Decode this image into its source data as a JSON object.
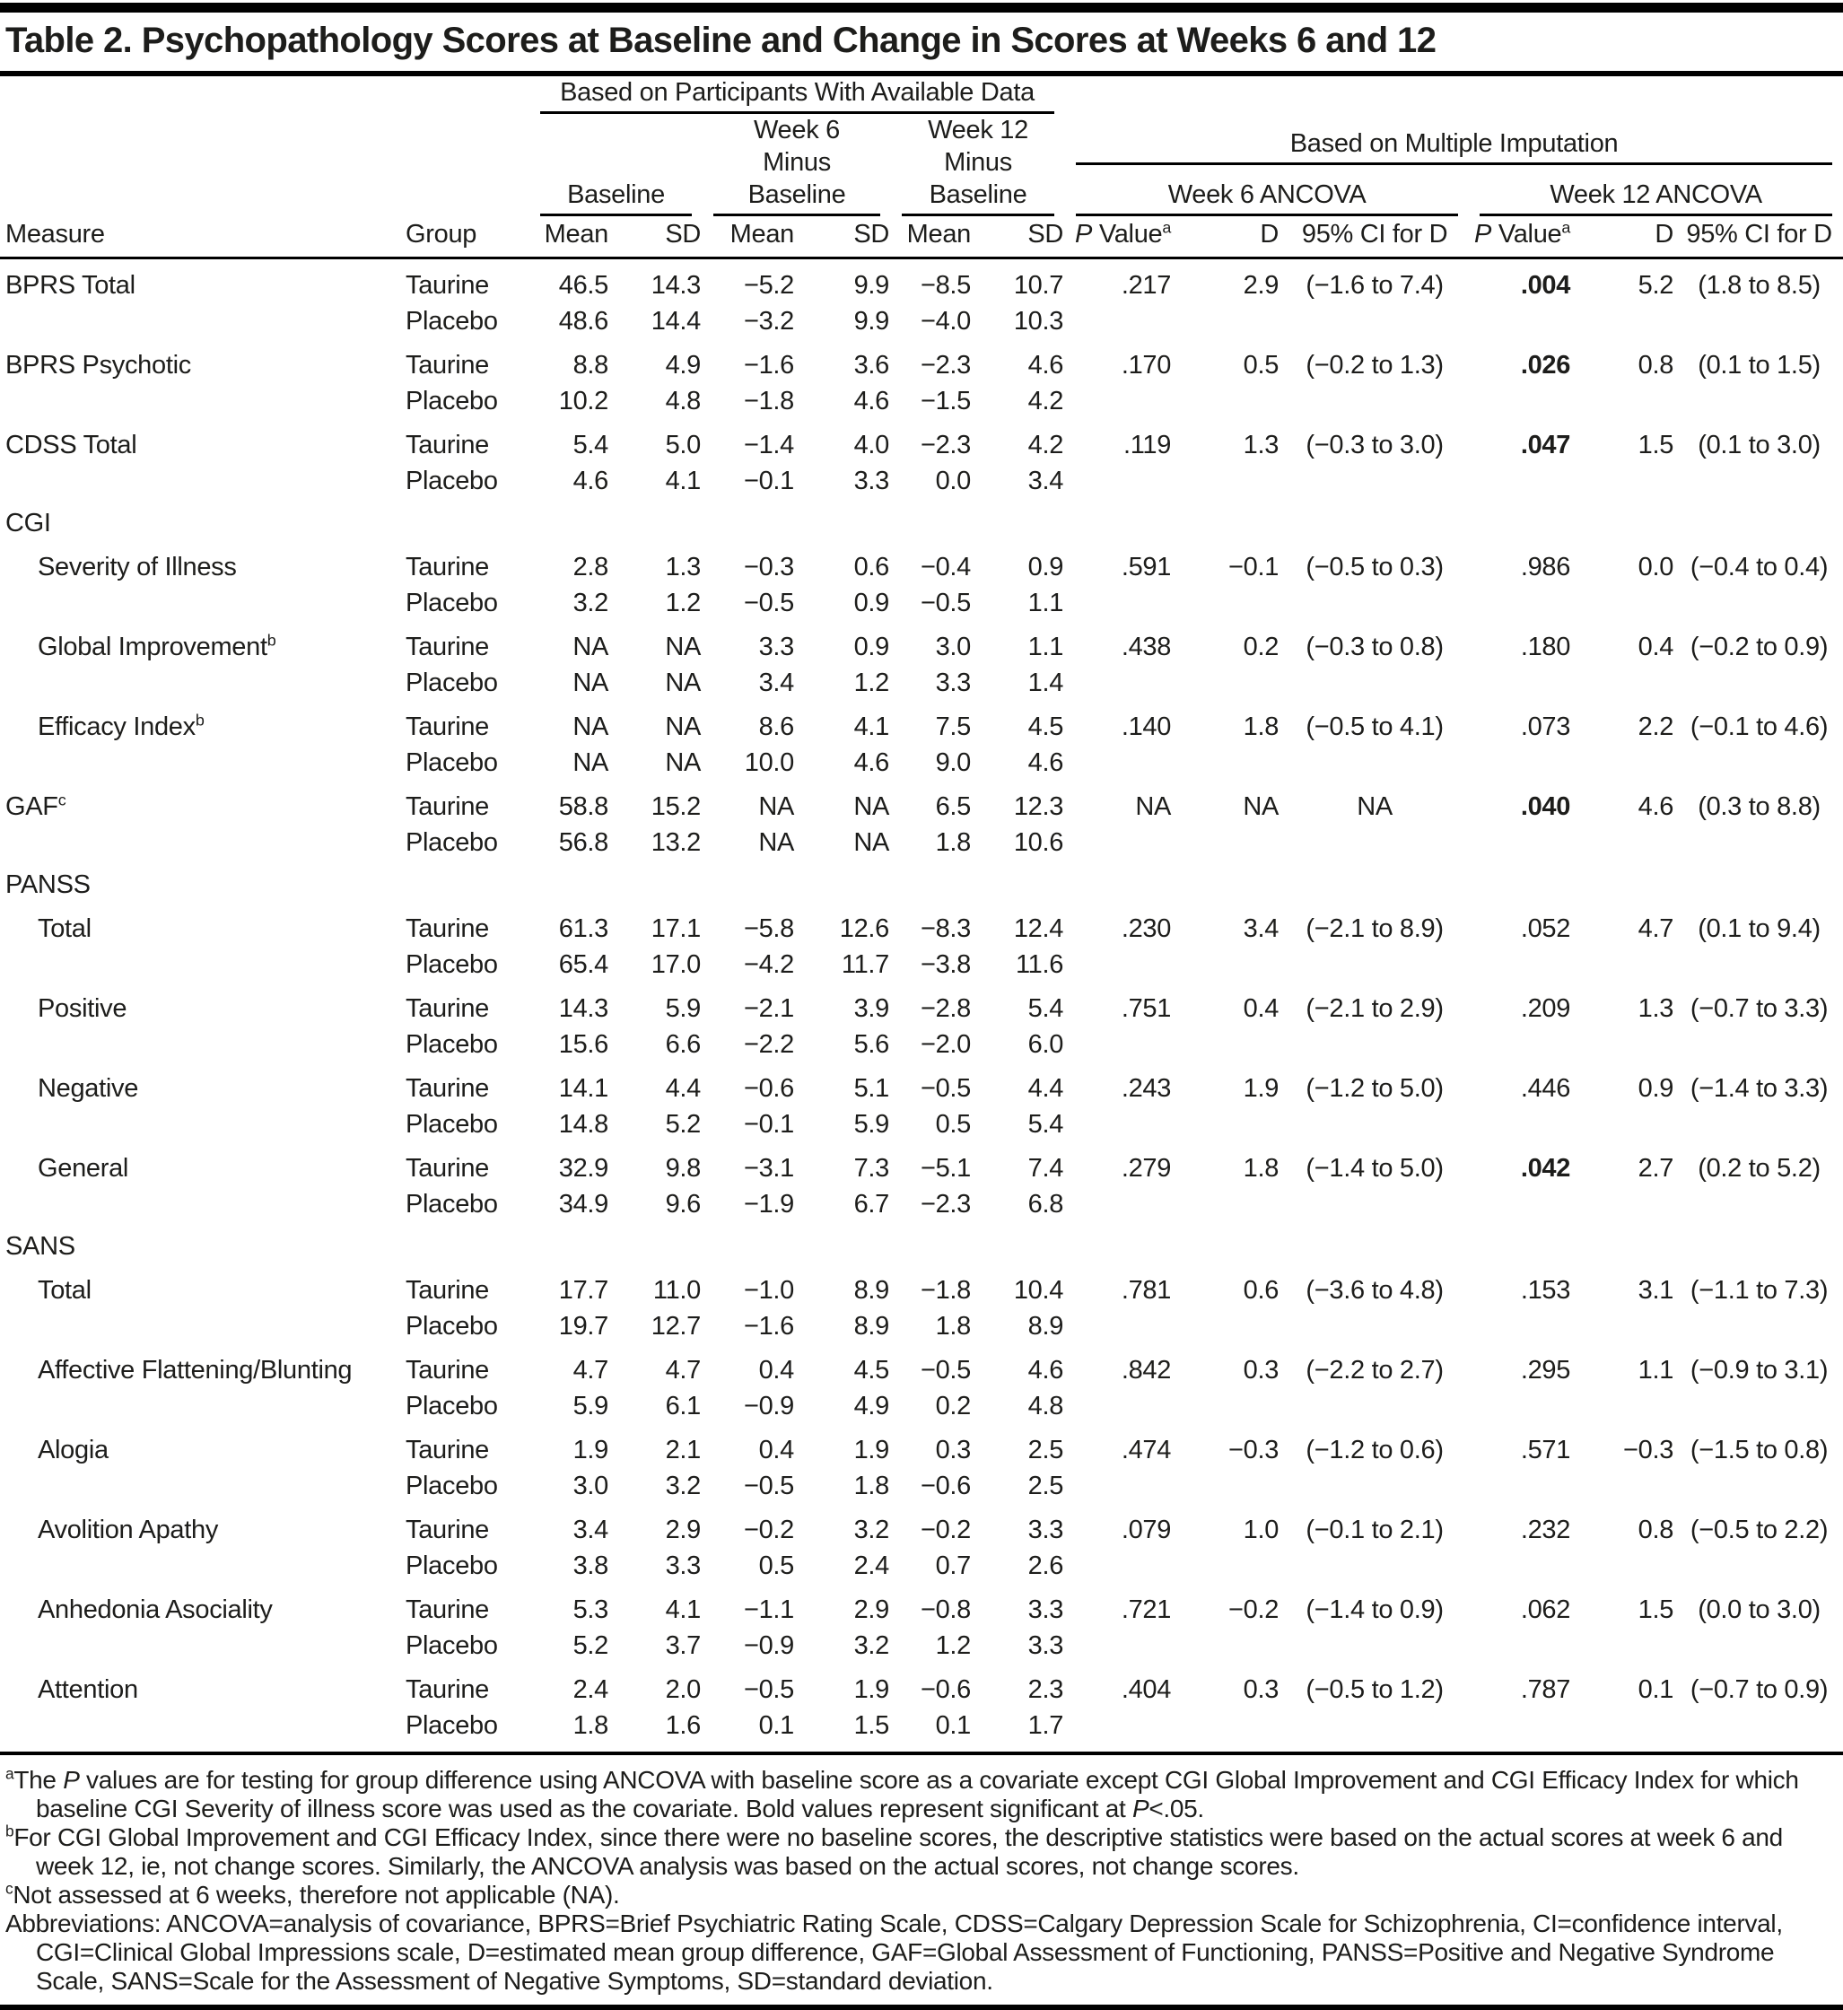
{
  "colors": {
    "ink": "#1d1d1b",
    "rule": "#000000",
    "background": "#ffffff"
  },
  "title": "Table 2. Psychopathology Scores at Baseline and Change in Scores at Weeks 6 and 12",
  "header": {
    "available_data": "Based on Participants With Available Data",
    "multiple_imputation": "Based on Multiple Imputation",
    "baseline": "Baseline",
    "week6_minus_lines": [
      "Week 6",
      "Minus",
      "Baseline"
    ],
    "week12_minus_lines": [
      "Week 12",
      "Minus",
      "Baseline"
    ],
    "week6_ancova": "Week 6 ANCOVA",
    "week12_ancova": "Week 12 ANCOVA",
    "measure": "Measure",
    "group": "Group",
    "mean": "Mean",
    "sd": "SD",
    "p_italic": "P",
    "p_value_rest": " Value",
    "p_sup": "a",
    "d": "D",
    "ci_for_d": "95% CI for D"
  },
  "rows": [
    {
      "label": "BPRS Total",
      "indent": false,
      "groups": [
        {
          "group": "Taurine",
          "vals": [
            "46.5",
            "14.3",
            "−5.2",
            "9.9",
            "−8.5",
            "10.7"
          ],
          "w6": {
            "p": ".217",
            "d": "2.9",
            "ci": "(−1.6 to 7.4)"
          },
          "w12": {
            "p": ".004",
            "bold": true,
            "d": "5.2",
            "ci": "(1.8 to 8.5)"
          }
        },
        {
          "group": "Placebo",
          "vals": [
            "48.6",
            "14.4",
            "−3.2",
            "9.9",
            "−4.0",
            "10.3"
          ]
        }
      ]
    },
    {
      "label": "BPRS Psychotic",
      "indent": false,
      "groups": [
        {
          "group": "Taurine",
          "vals": [
            "8.8",
            "4.9",
            "−1.6",
            "3.6",
            "−2.3",
            "4.6"
          ],
          "w6": {
            "p": ".170",
            "d": "0.5",
            "ci": "(−0.2 to 1.3)"
          },
          "w12": {
            "p": ".026",
            "bold": true,
            "d": "0.8",
            "ci": "(0.1 to 1.5)"
          }
        },
        {
          "group": "Placebo",
          "vals": [
            "10.2",
            "4.8",
            "−1.8",
            "4.6",
            "−1.5",
            "4.2"
          ]
        }
      ]
    },
    {
      "label": "CDSS Total",
      "indent": false,
      "groups": [
        {
          "group": "Taurine",
          "vals": [
            "5.4",
            "5.0",
            "−1.4",
            "4.0",
            "−2.3",
            "4.2"
          ],
          "w6": {
            "p": ".119",
            "d": "1.3",
            "ci": "(−0.3 to 3.0)"
          },
          "w12": {
            "p": ".047",
            "bold": true,
            "d": "1.5",
            "ci": "(0.1 to 3.0)"
          }
        },
        {
          "group": "Placebo",
          "vals": [
            "4.6",
            "4.1",
            "−0.1",
            "3.3",
            "0.0",
            "3.4"
          ]
        }
      ]
    },
    {
      "section": "CGI"
    },
    {
      "label": "Severity of Illness",
      "indent": true,
      "groups": [
        {
          "group": "Taurine",
          "vals": [
            "2.8",
            "1.3",
            "−0.3",
            "0.6",
            "−0.4",
            "0.9"
          ],
          "w6": {
            "p": ".591",
            "d": "−0.1",
            "ci": "(−0.5 to 0.3)"
          },
          "w12": {
            "p": ".986",
            "bold": false,
            "d": "0.0",
            "ci": "(−0.4 to 0.4)"
          }
        },
        {
          "group": "Placebo",
          "vals": [
            "3.2",
            "1.2",
            "−0.5",
            "0.9",
            "−0.5",
            "1.1"
          ]
        }
      ]
    },
    {
      "label": "Global Improvement",
      "label_sup": "b",
      "indent": true,
      "groups": [
        {
          "group": "Taurine",
          "vals": [
            "NA",
            "NA",
            "3.3",
            "0.9",
            "3.0",
            "1.1"
          ],
          "w6": {
            "p": ".438",
            "d": "0.2",
            "ci": "(−0.3 to 0.8)"
          },
          "w12": {
            "p": ".180",
            "bold": false,
            "d": "0.4",
            "ci": "(−0.2 to 0.9)"
          }
        },
        {
          "group": "Placebo",
          "vals": [
            "NA",
            "NA",
            "3.4",
            "1.2",
            "3.3",
            "1.4"
          ]
        }
      ]
    },
    {
      "label": "Efficacy Index",
      "label_sup": "b",
      "indent": true,
      "groups": [
        {
          "group": "Taurine",
          "vals": [
            "NA",
            "NA",
            "8.6",
            "4.1",
            "7.5",
            "4.5"
          ],
          "w6": {
            "p": ".140",
            "d": "1.8",
            "ci": "(−0.5 to 4.1)"
          },
          "w12": {
            "p": ".073",
            "bold": false,
            "d": "2.2",
            "ci": "(−0.1 to 4.6)"
          }
        },
        {
          "group": "Placebo",
          "vals": [
            "NA",
            "NA",
            "10.0",
            "4.6",
            "9.0",
            "4.6"
          ]
        }
      ]
    },
    {
      "label": "GAF",
      "label_sup": "c",
      "indent": false,
      "groups": [
        {
          "group": "Taurine",
          "vals": [
            "58.8",
            "15.2",
            "NA",
            "NA",
            "6.5",
            "12.3"
          ],
          "w6": {
            "p": "NA",
            "d": "NA",
            "ci": "NA"
          },
          "w12": {
            "p": ".040",
            "bold": true,
            "d": "4.6",
            "ci": "(0.3 to 8.8)"
          }
        },
        {
          "group": "Placebo",
          "vals": [
            "56.8",
            "13.2",
            "NA",
            "NA",
            "1.8",
            "10.6"
          ]
        }
      ]
    },
    {
      "section": "PANSS"
    },
    {
      "label": "Total",
      "indent": true,
      "groups": [
        {
          "group": "Taurine",
          "vals": [
            "61.3",
            "17.1",
            "−5.8",
            "12.6",
            "−8.3",
            "12.4"
          ],
          "w6": {
            "p": ".230",
            "d": "3.4",
            "ci": "(−2.1 to 8.9)"
          },
          "w12": {
            "p": ".052",
            "bold": false,
            "d": "4.7",
            "ci": "(0.1 to 9.4)"
          }
        },
        {
          "group": "Placebo",
          "vals": [
            "65.4",
            "17.0",
            "−4.2",
            "11.7",
            "−3.8",
            "11.6"
          ]
        }
      ]
    },
    {
      "label": "Positive",
      "indent": true,
      "groups": [
        {
          "group": "Taurine",
          "vals": [
            "14.3",
            "5.9",
            "−2.1",
            "3.9",
            "−2.8",
            "5.4"
          ],
          "w6": {
            "p": ".751",
            "d": "0.4",
            "ci": "(−2.1 to 2.9)"
          },
          "w12": {
            "p": ".209",
            "bold": false,
            "d": "1.3",
            "ci": "(−0.7 to 3.3)"
          }
        },
        {
          "group": "Placebo",
          "vals": [
            "15.6",
            "6.6",
            "−2.2",
            "5.6",
            "−2.0",
            "6.0"
          ]
        }
      ]
    },
    {
      "label": "Negative",
      "indent": true,
      "groups": [
        {
          "group": "Taurine",
          "vals": [
            "14.1",
            "4.4",
            "−0.6",
            "5.1",
            "−0.5",
            "4.4"
          ],
          "w6": {
            "p": ".243",
            "d": "1.9",
            "ci": "(−1.2 to 5.0)"
          },
          "w12": {
            "p": ".446",
            "bold": false,
            "d": "0.9",
            "ci": "(−1.4 to 3.3)"
          }
        },
        {
          "group": "Placebo",
          "vals": [
            "14.8",
            "5.2",
            "−0.1",
            "5.9",
            "0.5",
            "5.4"
          ]
        }
      ]
    },
    {
      "label": "General",
      "indent": true,
      "groups": [
        {
          "group": "Taurine",
          "vals": [
            "32.9",
            "9.8",
            "−3.1",
            "7.3",
            "−5.1",
            "7.4"
          ],
          "w6": {
            "p": ".279",
            "d": "1.8",
            "ci": "(−1.4 to 5.0)"
          },
          "w12": {
            "p": ".042",
            "bold": true,
            "d": "2.7",
            "ci": "(0.2 to 5.2)"
          }
        },
        {
          "group": "Placebo",
          "vals": [
            "34.9",
            "9.6",
            "−1.9",
            "6.7",
            "−2.3",
            "6.8"
          ]
        }
      ]
    },
    {
      "section": "SANS"
    },
    {
      "label": "Total",
      "indent": true,
      "groups": [
        {
          "group": "Taurine",
          "vals": [
            "17.7",
            "11.0",
            "−1.0",
            "8.9",
            "−1.8",
            "10.4"
          ],
          "w6": {
            "p": ".781",
            "d": "0.6",
            "ci": "(−3.6 to 4.8)"
          },
          "w12": {
            "p": ".153",
            "bold": false,
            "d": "3.1",
            "ci": "(−1.1 to 7.3)"
          }
        },
        {
          "group": "Placebo",
          "vals": [
            "19.7",
            "12.7",
            "−1.6",
            "8.9",
            "1.8",
            "8.9"
          ]
        }
      ]
    },
    {
      "label": "Affective Flattening/Blunting",
      "indent": true,
      "groups": [
        {
          "group": "Taurine",
          "vals": [
            "4.7",
            "4.7",
            "0.4",
            "4.5",
            "−0.5",
            "4.6"
          ],
          "w6": {
            "p": ".842",
            "d": "0.3",
            "ci": "(−2.2 to 2.7)"
          },
          "w12": {
            "p": ".295",
            "bold": false,
            "d": "1.1",
            "ci": "(−0.9 to 3.1)"
          }
        },
        {
          "group": "Placebo",
          "vals": [
            "5.9",
            "6.1",
            "−0.9",
            "4.9",
            "0.2",
            "4.8"
          ]
        }
      ]
    },
    {
      "label": "Alogia",
      "indent": true,
      "groups": [
        {
          "group": "Taurine",
          "vals": [
            "1.9",
            "2.1",
            "0.4",
            "1.9",
            "0.3",
            "2.5"
          ],
          "w6": {
            "p": ".474",
            "d": "−0.3",
            "ci": "(−1.2 to 0.6)"
          },
          "w12": {
            "p": ".571",
            "bold": false,
            "d": "−0.3",
            "ci": "(−1.5 to 0.8)"
          }
        },
        {
          "group": "Placebo",
          "vals": [
            "3.0",
            "3.2",
            "−0.5",
            "1.8",
            "−0.6",
            "2.5"
          ]
        }
      ]
    },
    {
      "label": "Avolition Apathy",
      "indent": true,
      "groups": [
        {
          "group": "Taurine",
          "vals": [
            "3.4",
            "2.9",
            "−0.2",
            "3.2",
            "−0.2",
            "3.3"
          ],
          "w6": {
            "p": ".079",
            "d": "1.0",
            "ci": "(−0.1 to 2.1)"
          },
          "w12": {
            "p": ".232",
            "bold": false,
            "d": "0.8",
            "ci": "(−0.5 to 2.2)"
          }
        },
        {
          "group": "Placebo",
          "vals": [
            "3.8",
            "3.3",
            "0.5",
            "2.4",
            "0.7",
            "2.6"
          ]
        }
      ]
    },
    {
      "label": "Anhedonia Asociality",
      "indent": true,
      "groups": [
        {
          "group": "Taurine",
          "vals": [
            "5.3",
            "4.1",
            "−1.1",
            "2.9",
            "−0.8",
            "3.3"
          ],
          "w6": {
            "p": ".721",
            "d": "−0.2",
            "ci": "(−1.4 to 0.9)"
          },
          "w12": {
            "p": ".062",
            "bold": false,
            "d": "1.5",
            "ci": "(0.0 to 3.0)"
          }
        },
        {
          "group": "Placebo",
          "vals": [
            "5.2",
            "3.7",
            "−0.9",
            "3.2",
            "1.2",
            "3.3"
          ]
        }
      ]
    },
    {
      "label": "Attention",
      "indent": true,
      "groups": [
        {
          "group": "Taurine",
          "vals": [
            "2.4",
            "2.0",
            "−0.5",
            "1.9",
            "−0.6",
            "2.3"
          ],
          "w6": {
            "p": ".404",
            "d": "0.3",
            "ci": "(−0.5 to 1.2)"
          },
          "w12": {
            "p": ".787",
            "bold": false,
            "d": "0.1",
            "ci": "(−0.7 to 0.9)"
          }
        },
        {
          "group": "Placebo",
          "vals": [
            "1.8",
            "1.6",
            "0.1",
            "1.5",
            "0.1",
            "1.7"
          ]
        }
      ]
    }
  ],
  "footnotes": [
    {
      "sup": "a",
      "segments": [
        {
          "t": "The "
        },
        {
          "t": "P",
          "i": true
        },
        {
          "t": " values are for testing for group difference using ANCOVA with baseline score as a covariate except CGI Global Improvement and CGI Efficacy Index for which baseline CGI Severity of illness score was used as the covariate. Bold values represent significant at "
        },
        {
          "t": "P",
          "i": true
        },
        {
          "t": "<.05."
        }
      ]
    },
    {
      "sup": "b",
      "segments": [
        {
          "t": "For CGI Global Improvement and CGI Efficacy Index, since there were no baseline scores, the descriptive statistics were based on the actual scores at week 6 and week 12, ie, not change scores. Similarly, the ANCOVA analysis was based on the actual scores, not change scores."
        }
      ]
    },
    {
      "sup": "c",
      "segments": [
        {
          "t": "Not assessed at 6 weeks, therefore not applicable (NA)."
        }
      ]
    },
    {
      "sup": "",
      "segments": [
        {
          "t": "Abbreviations: ANCOVA=analysis of covariance, BPRS=Brief Psychiatric Rating Scale, CDSS=Calgary Depression Scale for Schizophrenia, CI=confidence interval, CGI=Clinical Global Impressions scale, D=estimated mean group difference, GAF=Global Assessment of Functioning, PANSS=Positive and Negative Syndrome Scale, SANS=Scale for the Assessment of Negative Symptoms, SD=standard deviation."
        }
      ]
    }
  ]
}
